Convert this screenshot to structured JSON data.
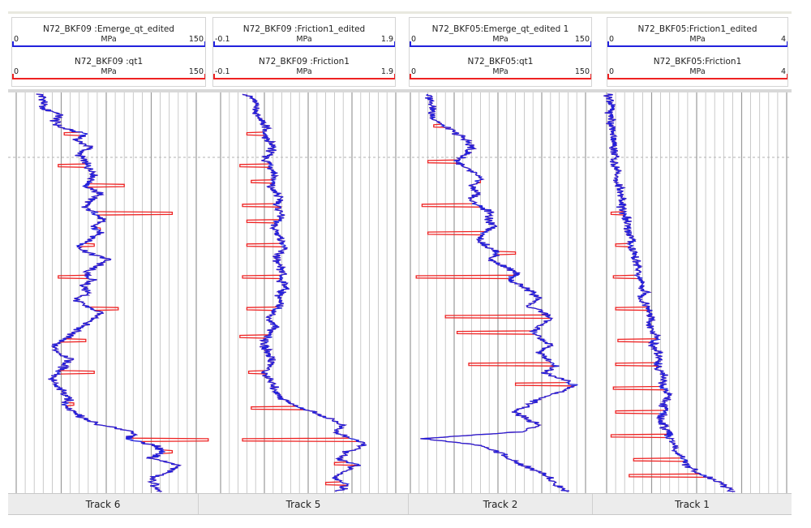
{
  "colors": {
    "edited": "#2222dd",
    "raw": "#ee2222",
    "grid": "#bdbdbd",
    "depth_line": "#b0b0b0"
  },
  "chart_data": [
    {
      "type": "line",
      "track": "Track 6",
      "curves": [
        {
          "name": "N72_BKF09 :Emerge_qt_edited",
          "unit": "MPa",
          "min": "0",
          "max": "150",
          "role": "edited"
        },
        {
          "name": "N72_BKF09 :qt1",
          "unit": "MPa",
          "min": "0",
          "max": "150",
          "role": "raw"
        }
      ],
      "xlim": [
        0,
        150
      ],
      "base": [
        20,
        24,
        20,
        36,
        32,
        36,
        58,
        50,
        62,
        52,
        56,
        60,
        66,
        63,
        58,
        70,
        62,
        56,
        66,
        72,
        64,
        70,
        62,
        52,
        60,
        78,
        66,
        58,
        63,
        56,
        60,
        50,
        56,
        72,
        62,
        56,
        48,
        40,
        30,
        35,
        46,
        40,
        36,
        30,
        32,
        40,
        45,
        40,
        48,
        56,
        70,
        100,
        92,
        115,
        122,
        112,
        135,
        128,
        112,
        115,
        118
      ],
      "spikes": [
        [
          0.1,
          40
        ],
        [
          0.18,
          35
        ],
        [
          0.23,
          90
        ],
        [
          0.3,
          130
        ],
        [
          0.34,
          70
        ],
        [
          0.38,
          65
        ],
        [
          0.46,
          35
        ],
        [
          0.54,
          85
        ],
        [
          0.62,
          58
        ],
        [
          0.7,
          65
        ],
        [
          0.78,
          48
        ],
        [
          0.87,
          160
        ],
        [
          0.9,
          130
        ]
      ]
    },
    {
      "type": "line",
      "track": "Track 5",
      "curves": [
        {
          "name": "N72_BKF09 :Friction1_edited",
          "unit": "MPa",
          "min": "-0.1",
          "max": "1.9",
          "role": "edited"
        },
        {
          "name": "N72_BKF09 :Friction1",
          "unit": "MPa",
          "min": "-0.1",
          "max": "1.9",
          "role": "raw"
        }
      ],
      "xlim": [
        -0.1,
        1.9
      ],
      "base": [
        0.2,
        0.28,
        0.32,
        0.3,
        0.36,
        0.42,
        0.38,
        0.44,
        0.5,
        0.45,
        0.42,
        0.48,
        0.52,
        0.5,
        0.46,
        0.54,
        0.58,
        0.55,
        0.6,
        0.56,
        0.5,
        0.55,
        0.6,
        0.62,
        0.58,
        0.52,
        0.56,
        0.62,
        0.58,
        0.65,
        0.6,
        0.55,
        0.58,
        0.5,
        0.45,
        0.52,
        0.48,
        0.42,
        0.4,
        0.44,
        0.5,
        0.46,
        0.4,
        0.45,
        0.5,
        0.55,
        0.6,
        0.75,
        0.95,
        1.15,
        1.3,
        1.2,
        1.4,
        1.55,
        1.35,
        1.25,
        1.45,
        1.3,
        1.2,
        1.35,
        1.25
      ],
      "spikes": [
        [
          0.1,
          0.2
        ],
        [
          0.18,
          0.12
        ],
        [
          0.22,
          0.25
        ],
        [
          0.28,
          0.15
        ],
        [
          0.32,
          0.2
        ],
        [
          0.38,
          0.2
        ],
        [
          0.46,
          0.15
        ],
        [
          0.54,
          0.2
        ],
        [
          0.61,
          0.12
        ],
        [
          0.7,
          0.22
        ],
        [
          0.79,
          0.25
        ],
        [
          0.87,
          0.15
        ],
        [
          0.93,
          1.2
        ],
        [
          0.98,
          1.1
        ]
      ]
    },
    {
      "type": "line",
      "track": "Track 2",
      "curves": [
        {
          "name": "N72_BKF05:Emerge_qt_edited 1",
          "unit": "MPa",
          "min": "0",
          "max": "150",
          "role": "edited"
        },
        {
          "name": "N72_BKF05:qt1",
          "unit": "MPa",
          "min": "0",
          "max": "150",
          "role": "raw"
        }
      ],
      "xlim": [
        0,
        150
      ],
      "base": [
        15,
        18,
        20,
        18,
        22,
        30,
        40,
        48,
        52,
        48,
        40,
        45,
        55,
        60,
        52,
        58,
        50,
        60,
        70,
        65,
        72,
        64,
        58,
        66,
        75,
        68,
        80,
        90,
        85,
        95,
        105,
        110,
        100,
        115,
        120,
        110,
        105,
        112,
        120,
        110,
        118,
        125,
        115,
        130,
        140,
        128,
        110,
        100,
        90,
        100,
        110,
        95,
        10,
        60,
        75,
        85,
        95,
        110,
        120,
        125,
        135
      ],
      "spikes": [
        [
          0.08,
          20
        ],
        [
          0.17,
          15
        ],
        [
          0.22,
          60
        ],
        [
          0.28,
          10
        ],
        [
          0.35,
          15
        ],
        [
          0.4,
          90
        ],
        [
          0.46,
          5
        ],
        [
          0.56,
          30
        ],
        [
          0.6,
          40
        ],
        [
          0.68,
          50
        ],
        [
          0.73,
          90
        ]
      ]
    },
    {
      "type": "line",
      "track": "Track 1",
      "curves": [
        {
          "name": "N72_BKF05:Friction1_edited",
          "unit": "MPa",
          "min": "0",
          "max": "4",
          "role": "edited"
        },
        {
          "name": "N72_BKF05:Friction1",
          "unit": "MPa",
          "min": "0",
          "max": "4",
          "role": "raw"
        }
      ],
      "xlim": [
        0,
        4
      ],
      "base": [
        0.05,
        0.08,
        0.1,
        0.08,
        0.12,
        0.1,
        0.14,
        0.18,
        0.16,
        0.2,
        0.15,
        0.22,
        0.25,
        0.2,
        0.28,
        0.3,
        0.35,
        0.32,
        0.4,
        0.45,
        0.42,
        0.5,
        0.55,
        0.52,
        0.6,
        0.65,
        0.7,
        0.68,
        0.75,
        0.8,
        0.85,
        0.78,
        0.9,
        0.95,
        1.0,
        0.92,
        1.05,
        1.1,
        1.0,
        1.15,
        1.2,
        1.1,
        1.25,
        1.3,
        1.2,
        1.4,
        1.35,
        1.25,
        1.3,
        1.2,
        1.25,
        1.35,
        1.4,
        1.5,
        1.55,
        1.65,
        1.8,
        2.0,
        2.3,
        2.6,
        2.8
      ],
      "spikes": [
        [
          0.3,
          0.1
        ],
        [
          0.38,
          0.2
        ],
        [
          0.46,
          0.15
        ],
        [
          0.54,
          0.2
        ],
        [
          0.62,
          0.25
        ],
        [
          0.68,
          0.2
        ],
        [
          0.74,
          0.15
        ],
        [
          0.8,
          0.2
        ],
        [
          0.86,
          0.1
        ],
        [
          0.92,
          0.6
        ],
        [
          0.96,
          0.5
        ]
      ]
    }
  ]
}
